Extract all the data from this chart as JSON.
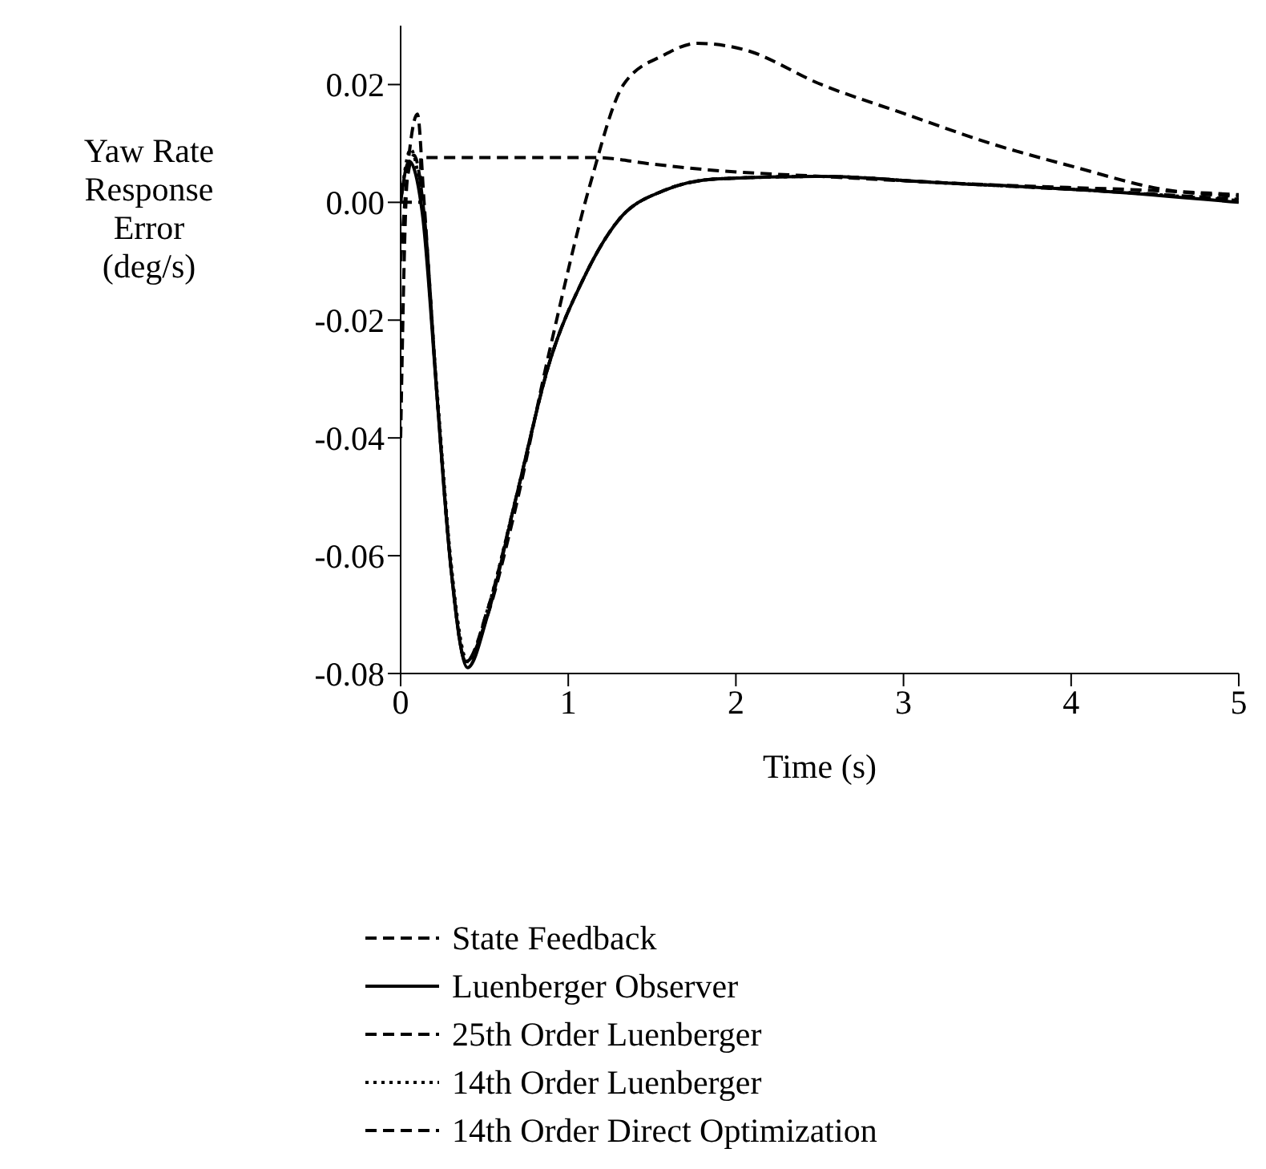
{
  "chart_data": {
    "type": "line",
    "xlabel": "Time (s)",
    "ylabel": "Yaw Rate Response Error (deg/s)",
    "xlim": [
      0,
      5
    ],
    "xticks": [
      0,
      1,
      2,
      3,
      4,
      5
    ],
    "ylim": [
      -0.08,
      0.03
    ],
    "yticks": [
      {
        "value": 0.02,
        "label": "0.02"
      },
      {
        "value": 0,
        "label": "0.00"
      },
      {
        "value": -0.02,
        "label": "-0.02"
      },
      {
        "value": -0.04,
        "label": "-0.04"
      },
      {
        "value": -0.06,
        "label": "-0.06"
      },
      {
        "value": -0.08,
        "label": "-0.08"
      }
    ],
    "grid": false,
    "legend": "bottom",
    "marker": "none",
    "series": [
      {
        "name": "State Feedback",
        "color": "#000000",
        "line_style": "dashed",
        "x": [
          0,
          0.12,
          0.12,
          0.5,
          1.16,
          1.5,
          1.84,
          2.51,
          3.5,
          4.5,
          5
        ],
        "values": [
          0,
          0,
          0.0076,
          0.0076,
          0.0076,
          0.0065,
          0.0055,
          0.0044,
          0.003,
          0.002,
          0.0013
        ]
      },
      {
        "name": "Luenberger Observer",
        "color": "#000000",
        "line_style": "solid",
        "x": [
          0,
          0.05,
          0.13,
          0.22,
          0.3,
          0.4,
          0.52,
          0.69,
          0.89,
          1.09,
          1.3,
          1.57,
          1.9,
          2.51,
          3.18,
          4.19,
          5
        ],
        "values": [
          0,
          0.007,
          -0.002,
          -0.034,
          -0.062,
          -0.079,
          -0.07,
          -0.05,
          -0.027,
          -0.013,
          -0.003,
          0.002,
          0.004,
          0.0044,
          0.0034,
          0.0019,
          0
        ]
      },
      {
        "name": "25th Order Luenberger",
        "color": "#000000",
        "line_style": "dashed",
        "x": [
          0,
          0.05,
          0.1,
          0.14,
          0.22,
          0.3,
          0.39,
          0.52,
          0.69,
          0.89,
          1.09,
          1.3,
          1.57,
          1.9,
          2.51,
          3.18,
          4.19,
          5
        ],
        "values": [
          -0.01,
          0.008,
          0.015,
          0.0,
          -0.034,
          -0.062,
          -0.078,
          -0.069,
          -0.05,
          -0.027,
          -0.013,
          -0.003,
          0.002,
          0.004,
          0.0044,
          0.0034,
          0.0019,
          0.0005
        ]
      },
      {
        "name": "14th Order Luenberger",
        "color": "#000000",
        "line_style": "dotted",
        "x": [
          0,
          0.06,
          0.13,
          0.22,
          0.3,
          0.4,
          0.52,
          0.69,
          0.89,
          1.09,
          1.3,
          1.57,
          1.9,
          2.51,
          3.18,
          4.19,
          5
        ],
        "values": [
          0,
          0.009,
          -0.001,
          -0.033,
          -0.061,
          -0.078,
          -0.069,
          -0.05,
          -0.027,
          -0.013,
          -0.003,
          0.002,
          0.004,
          0.0044,
          0.0034,
          0.0019,
          0.0003
        ]
      },
      {
        "name": "14th Order Direct Optimization",
        "color": "#000000",
        "line_style": "dashed",
        "x": [
          0,
          0.04,
          0.08,
          0.14,
          0.22,
          0.3,
          0.39,
          0.52,
          0.66,
          0.89,
          1.13,
          1.33,
          1.57,
          1.77,
          2.04,
          2.51,
          3.01,
          3.52,
          4.02,
          4.53,
          5
        ],
        "values": [
          -0.04,
          0.004,
          0.008,
          -0.002,
          -0.034,
          -0.062,
          -0.078,
          -0.07,
          -0.055,
          -0.025,
          0.003,
          0.02,
          0.025,
          0.027,
          0.026,
          0.02,
          0.015,
          0.01,
          0.006,
          0.0023,
          0.001
        ]
      }
    ]
  }
}
